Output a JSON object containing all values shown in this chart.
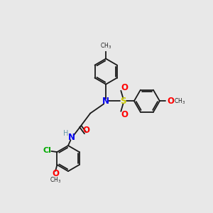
{
  "bg_color": "#e8e8e8",
  "bond_color": "#1a1a1a",
  "N_color": "#0000ee",
  "O_color": "#ff0000",
  "S_color": "#cccc00",
  "Cl_color": "#00aa00",
  "NH_color": "#6699aa",
  "figsize": [
    3.0,
    3.0
  ],
  "dpi": 100,
  "xlim": [
    0,
    10
  ],
  "ylim": [
    0,
    10
  ]
}
